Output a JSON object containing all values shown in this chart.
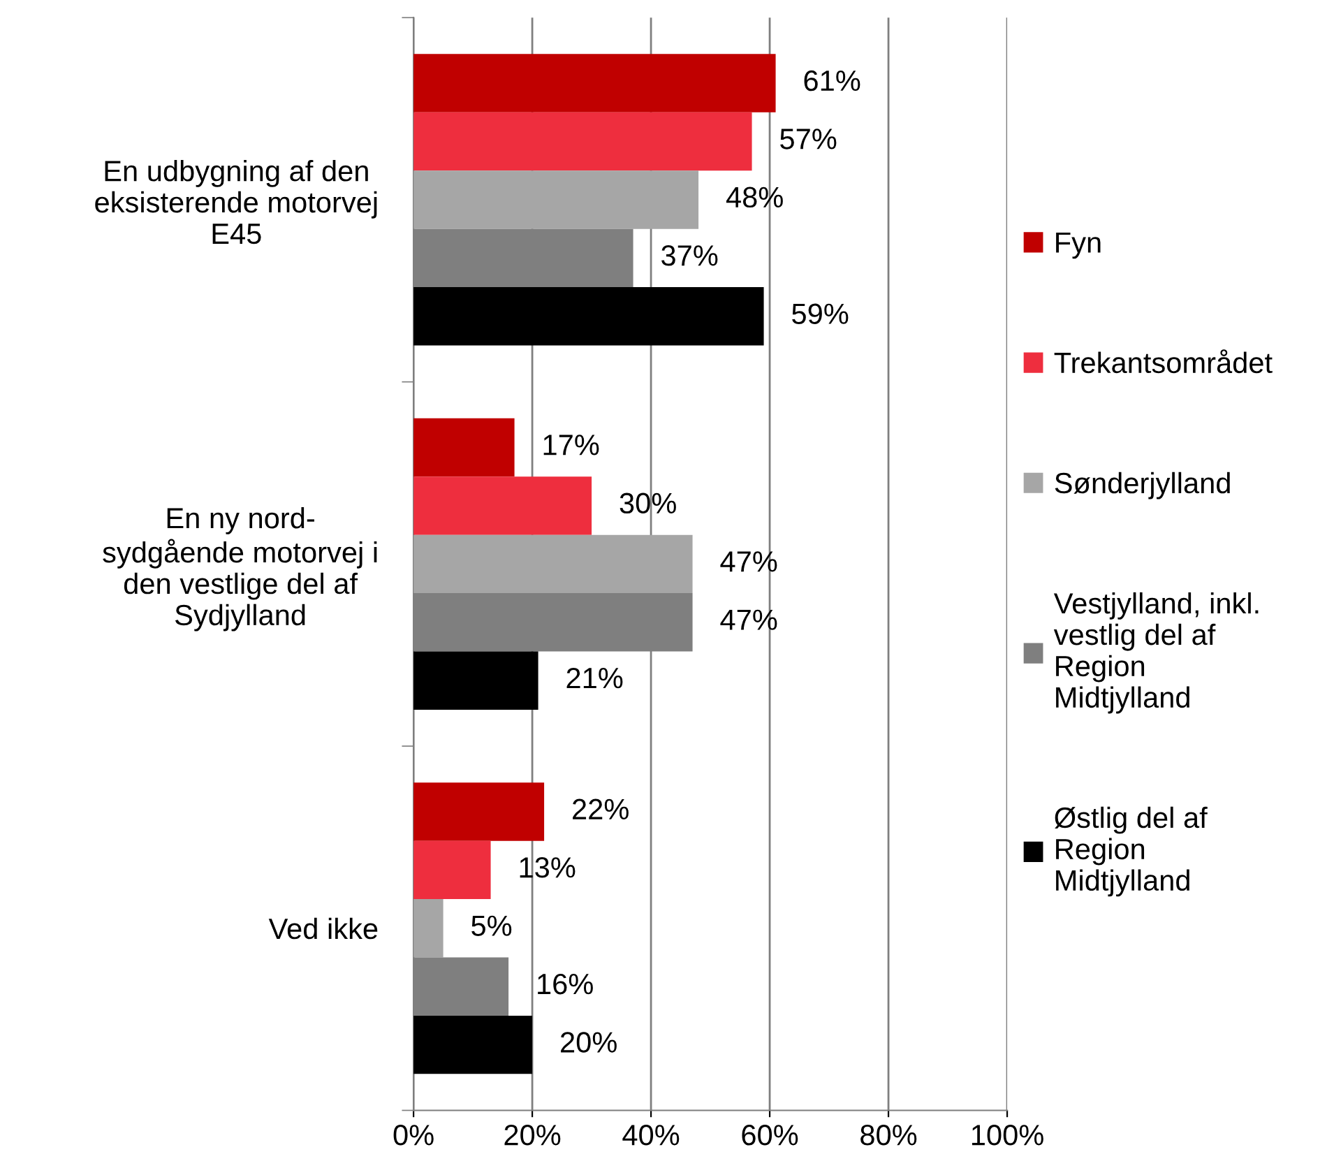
{
  "chart_data": {
    "type": "bar",
    "orientation": "horizontal",
    "categories": [
      "En udbygning af den\neksisterende motorvej\nE45",
      "En ny nord-\nsydgående motorvej i\nden vestlige del af\nSydjylland",
      "Ved ikke"
    ],
    "series": [
      {
        "name": "Fyn",
        "color": "#c00000",
        "values": [
          61,
          17,
          22
        ],
        "value_labels": [
          "61%",
          "17%",
          "22%"
        ]
      },
      {
        "name": "Trekantsområdet",
        "color": "#ee2e3e",
        "values": [
          57,
          30,
          13
        ],
        "value_labels": [
          "57%",
          "30%",
          "13%"
        ]
      },
      {
        "name": "Sønderjylland",
        "color": "#a6a6a6",
        "values": [
          48,
          47,
          5
        ],
        "value_labels": [
          "48%",
          "47%",
          "5%"
        ]
      },
      {
        "name": "Vestjylland, inkl.\nvestlig del af\nRegion\nMidtjylland",
        "color": "#7f7f7f",
        "values": [
          37,
          47,
          16
        ],
        "value_labels": [
          "37%",
          "47%",
          "16%"
        ]
      },
      {
        "name": "Østlig del af\nRegion\nMidtjylland",
        "color": "#000000",
        "values": [
          59,
          21,
          20
        ],
        "value_labels": [
          "59%",
          "21%",
          "20%"
        ]
      }
    ],
    "xlim": [
      0,
      100
    ],
    "xticks": [
      {
        "value": 0,
        "label": "0%"
      },
      {
        "value": 20,
        "label": "20%"
      },
      {
        "value": 40,
        "label": "40%"
      },
      {
        "value": 60,
        "label": "60%"
      },
      {
        "value": 80,
        "label": "80%"
      },
      {
        "value": 100,
        "label": "100%"
      }
    ],
    "grid": "x",
    "legend": "right"
  }
}
